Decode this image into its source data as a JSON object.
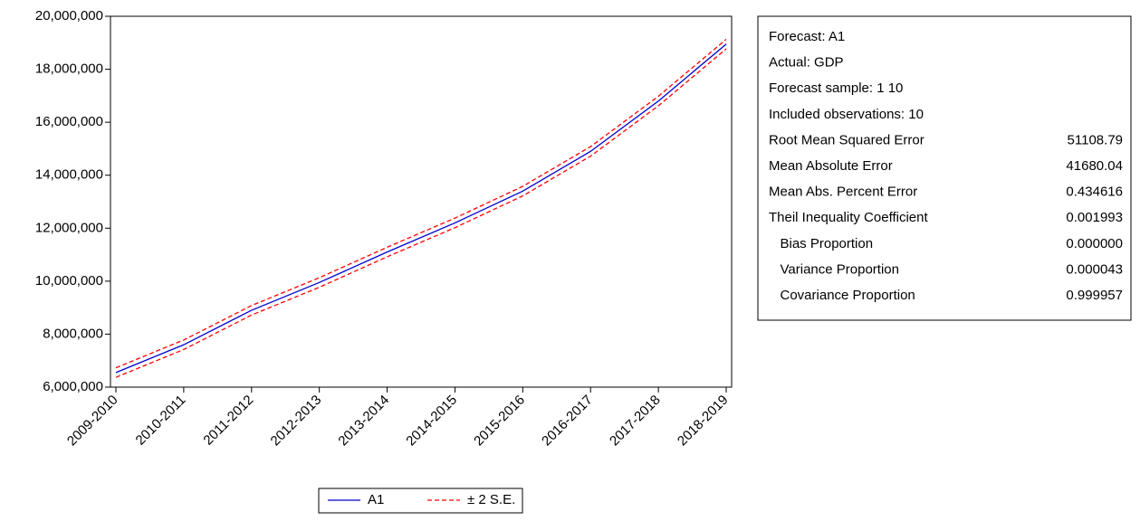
{
  "chart_data": {
    "type": "line",
    "categories": [
      "2009-2010",
      "2010-2011",
      "2011-2012",
      "2012-2013",
      "2013-2014",
      "2014-2015",
      "2015-2016",
      "2016-2017",
      "2017-2018",
      "2018-2019"
    ],
    "series": [
      {
        "name": "A1",
        "color": "#0000cc",
        "dash": false,
        "values": [
          6550000,
          7600000,
          8900000,
          9950000,
          11100000,
          12200000,
          13400000,
          14900000,
          16800000,
          18950000
        ]
      },
      {
        "name": "± 2 S.E.",
        "color": "#ff0000",
        "dash": true,
        "values": [
          6730000,
          7780000,
          9080000,
          10130000,
          11280000,
          12380000,
          13580000,
          15080000,
          16980000,
          19130000
        ],
        "lower": [
          6370000,
          7420000,
          8720000,
          9770000,
          10920000,
          12020000,
          13220000,
          14720000,
          16620000,
          18770000
        ]
      }
    ],
    "ylim": [
      6000000,
      20000000
    ],
    "yticks": [
      {
        "value": 6000000,
        "label": "6,000,000"
      },
      {
        "value": 8000000,
        "label": "8,000,000"
      },
      {
        "value": 10000000,
        "label": "10,000,000"
      },
      {
        "value": 12000000,
        "label": "12,000,000"
      },
      {
        "value": 14000000,
        "label": "14,000,000"
      },
      {
        "value": 16000000,
        "label": "16,000,000"
      },
      {
        "value": 18000000,
        "label": "18,000,000"
      },
      {
        "value": 20000000,
        "label": "20,000,000"
      }
    ],
    "grid": false
  },
  "stats_box": {
    "rows": [
      [
        "Forecast: A1"
      ],
      [
        "Actual: GDP"
      ],
      [
        "Forecast sample: 1 10"
      ],
      [
        "Included observations: 10"
      ],
      [
        "Root Mean Squared Error",
        "51108.79"
      ],
      [
        "Mean Absolute Error",
        "41680.04"
      ],
      [
        "Mean Abs. Percent Error",
        "0.434616"
      ],
      [
        "Theil Inequality Coefficient",
        "0.001993"
      ],
      [
        "   Bias Proportion",
        "0.000000"
      ],
      [
        "   Variance Proportion",
        "0.000043"
      ],
      [
        "   Covariance Proportion",
        "0.999957"
      ]
    ]
  }
}
